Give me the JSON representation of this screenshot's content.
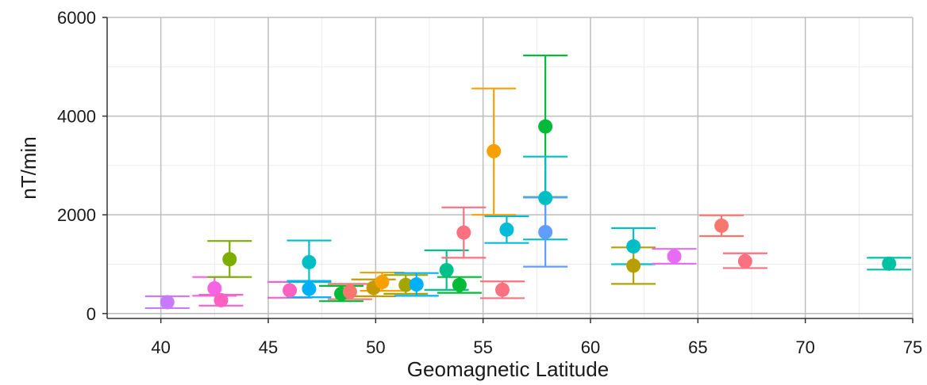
{
  "chart_data": {
    "type": "scatter",
    "title": "",
    "xlabel": "Geomagnetic Latitude",
    "ylabel": "nT/min",
    "xlim": [
      37.5,
      75
    ],
    "ylim": [
      -100,
      6000
    ],
    "x_ticks": [
      40,
      45,
      50,
      55,
      60,
      65,
      70,
      75
    ],
    "y_ticks": [
      0,
      2000,
      4000,
      6000
    ],
    "x_tick_labels": [
      "40",
      "45",
      "50",
      "55",
      "60",
      "65",
      "70",
      "75"
    ],
    "y_tick_labels": [
      "0",
      "2000",
      "4000",
      "6000"
    ],
    "grid": true,
    "legend": "none",
    "points": [
      {
        "x": 40.3,
        "y": 230,
        "low": 110,
        "high": 350,
        "color": "#c77cff"
      },
      {
        "x": 42.5,
        "y": 510,
        "low": 360,
        "high": 740,
        "color": "#f564e3"
      },
      {
        "x": 42.8,
        "y": 270,
        "low": 160,
        "high": 380,
        "color": "#ff61c3"
      },
      {
        "x": 43.2,
        "y": 1100,
        "low": 740,
        "high": 1470,
        "color": "#7cae00"
      },
      {
        "x": 46.0,
        "y": 470,
        "low": 320,
        "high": 640,
        "color": "#ff61c3"
      },
      {
        "x": 46.9,
        "y": 1040,
        "low": 640,
        "high": 1480,
        "color": "#00bfc4"
      },
      {
        "x": 46.9,
        "y": 500,
        "low": 330,
        "high": 660,
        "color": "#00b0f6"
      },
      {
        "x": 48.4,
        "y": 400,
        "low": 250,
        "high": 560,
        "color": "#00ba38"
      },
      {
        "x": 48.8,
        "y": 440,
        "low": 290,
        "high": 600,
        "color": "#f8766d"
      },
      {
        "x": 49.9,
        "y": 520,
        "low": 350,
        "high": 690,
        "color": "#c49a00"
      },
      {
        "x": 50.3,
        "y": 640,
        "low": 460,
        "high": 830,
        "color": "#f8a000"
      },
      {
        "x": 51.4,
        "y": 580,
        "low": 400,
        "high": 780,
        "color": "#a3a500"
      },
      {
        "x": 51.9,
        "y": 590,
        "low": 360,
        "high": 820,
        "color": "#00b0f6"
      },
      {
        "x": 53.3,
        "y": 880,
        "low": 480,
        "high": 1280,
        "color": "#00c08b"
      },
      {
        "x": 53.9,
        "y": 580,
        "low": 420,
        "high": 740,
        "color": "#00ba38"
      },
      {
        "x": 54.1,
        "y": 1640,
        "low": 1130,
        "high": 2150,
        "color": "#fc717f"
      },
      {
        "x": 55.5,
        "y": 3290,
        "low": 2000,
        "high": 4560,
        "color": "#f8a000"
      },
      {
        "x": 55.9,
        "y": 480,
        "low": 310,
        "high": 650,
        "color": "#fc717f"
      },
      {
        "x": 56.1,
        "y": 1700,
        "low": 1430,
        "high": 1970,
        "color": "#00bcd8"
      },
      {
        "x": 57.9,
        "y": 3790,
        "low": 2360,
        "high": 5230,
        "color": "#00ba38"
      },
      {
        "x": 57.9,
        "y": 2340,
        "low": 1500,
        "high": 3180,
        "color": "#00bfc4"
      },
      {
        "x": 57.9,
        "y": 1650,
        "low": 950,
        "high": 2350,
        "color": "#619cff"
      },
      {
        "x": 62.0,
        "y": 1360,
        "low": 1000,
        "high": 1730,
        "color": "#00bfc4"
      },
      {
        "x": 62.0,
        "y": 970,
        "low": 600,
        "high": 1340,
        "color": "#b79f00"
      },
      {
        "x": 63.9,
        "y": 1160,
        "low": 1010,
        "high": 1310,
        "color": "#e76bf3"
      },
      {
        "x": 66.1,
        "y": 1780,
        "low": 1570,
        "high": 1990,
        "color": "#f8766d"
      },
      {
        "x": 67.2,
        "y": 1060,
        "low": 920,
        "high": 1220,
        "color": "#fc717f"
      },
      {
        "x": 73.9,
        "y": 1010,
        "low": 890,
        "high": 1130,
        "color": "#00c1a3"
      }
    ]
  }
}
